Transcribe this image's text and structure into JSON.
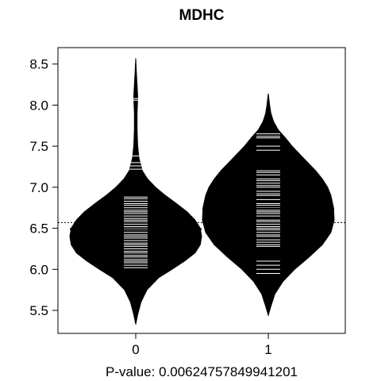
{
  "chart_data": {
    "type": "beanplot",
    "title": "MDHC",
    "xlabel": "P-value: 0.00624757849941201",
    "categories": [
      "0",
      "1"
    ],
    "ylim": [
      5.22,
      8.7
    ],
    "yticks": [
      5.5,
      6.0,
      6.5,
      7.0,
      7.5,
      8.0,
      8.5
    ],
    "ytick_labels": [
      "5.5",
      "6.0",
      "6.5",
      "7.0",
      "7.5",
      "8.0",
      "8.5"
    ],
    "overall_mean": 6.57,
    "series": [
      {
        "category": "0",
        "mean": 6.49,
        "density": [
          [
            5.33,
            0.0
          ],
          [
            5.45,
            0.03
          ],
          [
            5.6,
            0.08
          ],
          [
            5.75,
            0.17
          ],
          [
            5.9,
            0.35
          ],
          [
            6.0,
            0.55
          ],
          [
            6.1,
            0.74
          ],
          [
            6.2,
            0.9
          ],
          [
            6.3,
            0.98
          ],
          [
            6.4,
            1.0
          ],
          [
            6.5,
            0.98
          ],
          [
            6.6,
            0.9
          ],
          [
            6.7,
            0.78
          ],
          [
            6.8,
            0.62
          ],
          [
            6.9,
            0.45
          ],
          [
            7.0,
            0.3
          ],
          [
            7.1,
            0.18
          ],
          [
            7.2,
            0.1
          ],
          [
            7.35,
            0.05
          ],
          [
            7.5,
            0.03
          ],
          [
            7.7,
            0.02
          ],
          [
            7.9,
            0.02
          ],
          [
            8.1,
            0.03
          ],
          [
            8.25,
            0.02
          ],
          [
            8.4,
            0.01
          ],
          [
            8.57,
            0.0
          ]
        ],
        "observations": [
          6.02,
          6.05,
          6.08,
          6.1,
          6.12,
          6.15,
          6.17,
          6.2,
          6.22,
          6.25,
          6.28,
          6.3,
          6.32,
          6.35,
          6.38,
          6.4,
          6.42,
          6.45,
          6.48,
          6.5,
          6.52,
          6.55,
          6.58,
          6.6,
          6.62,
          6.65,
          6.68,
          6.7,
          6.72,
          6.75,
          6.78,
          6.8,
          6.83,
          6.86,
          6.88,
          7.22,
          7.26,
          7.3,
          7.38,
          8.06,
          8.08
        ]
      },
      {
        "category": "1",
        "mean": 6.74,
        "density": [
          [
            5.44,
            0.0
          ],
          [
            5.55,
            0.04
          ],
          [
            5.7,
            0.1
          ],
          [
            5.85,
            0.22
          ],
          [
            6.0,
            0.4
          ],
          [
            6.15,
            0.62
          ],
          [
            6.3,
            0.82
          ],
          [
            6.45,
            0.95
          ],
          [
            6.6,
            1.0
          ],
          [
            6.75,
            0.99
          ],
          [
            6.9,
            0.95
          ],
          [
            7.0,
            0.9
          ],
          [
            7.1,
            0.82
          ],
          [
            7.2,
            0.72
          ],
          [
            7.3,
            0.6
          ],
          [
            7.4,
            0.48
          ],
          [
            7.5,
            0.36
          ],
          [
            7.6,
            0.26
          ],
          [
            7.7,
            0.15
          ],
          [
            7.8,
            0.08
          ],
          [
            7.9,
            0.04
          ],
          [
            8.0,
            0.02
          ],
          [
            8.14,
            0.0
          ]
        ],
        "observations": [
          5.95,
          6.0,
          6.05,
          6.1,
          6.28,
          6.3,
          6.33,
          6.36,
          6.4,
          6.42,
          6.45,
          6.48,
          6.5,
          6.52,
          6.55,
          6.58,
          6.6,
          6.65,
          6.68,
          6.7,
          6.72,
          6.75,
          6.78,
          6.8,
          6.85,
          6.9,
          6.92,
          6.95,
          7.0,
          7.02,
          7.05,
          7.08,
          7.1,
          7.15,
          7.18,
          7.2,
          7.45,
          7.5,
          7.6,
          7.62,
          7.65
        ]
      }
    ]
  }
}
